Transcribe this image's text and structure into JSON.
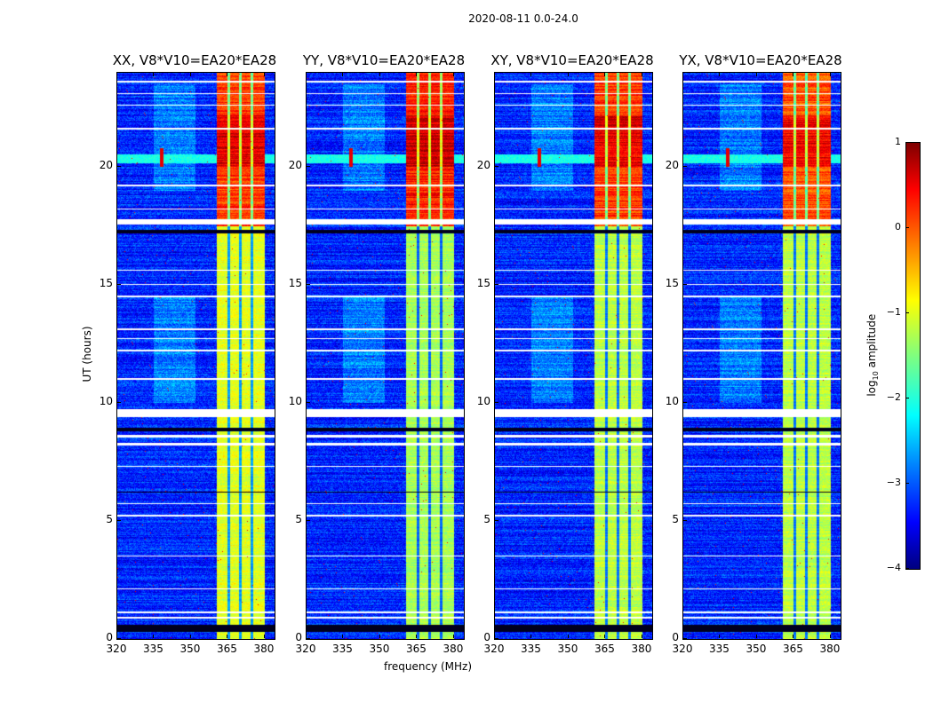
{
  "chart_data": {
    "type": "heatmap",
    "title": "2020-08-11 0.0-24.0",
    "xlabel": "frequency (MHz)",
    "ylabel": "UT (hours)",
    "xlim": [
      320,
      384
    ],
    "ylim": [
      0,
      24
    ],
    "xticks": [
      320,
      335,
      350,
      365,
      380
    ],
    "yticks": [
      0,
      5,
      10,
      15,
      20
    ],
    "colorbar": {
      "label": "log10 amplitude",
      "label_main": "log",
      "label_sub": "10",
      "label_rest": " amplitude",
      "range": [
        -4,
        1
      ],
      "ticks": [
        1,
        0,
        -1,
        -2,
        -3,
        -4
      ],
      "tick_labels": [
        "1",
        "0",
        "−1",
        "−2",
        "−3",
        "−4"
      ],
      "colormap": "jet"
    },
    "panels": [
      {
        "title": "XX, V8*V10=EA20*EA28",
        "band_level_low": -1.0,
        "band_level_high": 0.1
      },
      {
        "title": "YY, V8*V10=EA20*EA28",
        "band_level_low": -1.3,
        "band_level_high": 0.25
      },
      {
        "title": "XY, V8*V10=EA20*EA28",
        "band_level_low": -1.2,
        "band_level_high": 0.1
      },
      {
        "title": "YX, V8*V10=EA20*EA28",
        "band_level_low": -1.2,
        "band_level_high": 0.0
      }
    ],
    "background_level": -3.2,
    "rfi_band_mhz": [
      360.5,
      380
    ],
    "rfi_gaps_mhz": [
      365.5,
      370.2,
      374.9
    ],
    "broadband_rfi_hours": [
      20.15,
      20.55
    ],
    "narrowband_spike": {
      "mhz": 338,
      "hours": [
        20.0,
        20.8
      ]
    },
    "flagged_hours_white": [
      [
        0.85,
        0.95
      ],
      [
        1.1,
        1.15
      ],
      [
        2.1,
        2.15
      ],
      [
        3.5,
        3.55
      ],
      [
        5.2,
        5.25
      ],
      [
        5.7,
        5.75
      ],
      [
        7.3,
        7.35
      ],
      [
        8.2,
        8.3
      ],
      [
        8.55,
        8.65
      ],
      [
        9.4,
        9.75
      ],
      [
        11.0,
        11.05
      ],
      [
        12.2,
        12.25
      ],
      [
        12.7,
        12.75
      ],
      [
        13.1,
        13.15
      ],
      [
        14.5,
        14.55
      ],
      [
        15.0,
        15.05
      ],
      [
        15.6,
        15.65
      ],
      [
        17.55,
        17.8
      ],
      [
        18.2,
        18.25
      ],
      [
        19.2,
        19.25
      ],
      [
        21.6,
        21.65
      ],
      [
        22.6,
        22.65
      ],
      [
        23.1,
        23.15
      ],
      [
        23.6,
        23.65
      ]
    ],
    "flagged_hours_black": [
      [
        0.3,
        0.6
      ],
      [
        8.8,
        8.95
      ],
      [
        17.2,
        17.35
      ],
      [
        6.2,
        6.25
      ]
    ]
  }
}
